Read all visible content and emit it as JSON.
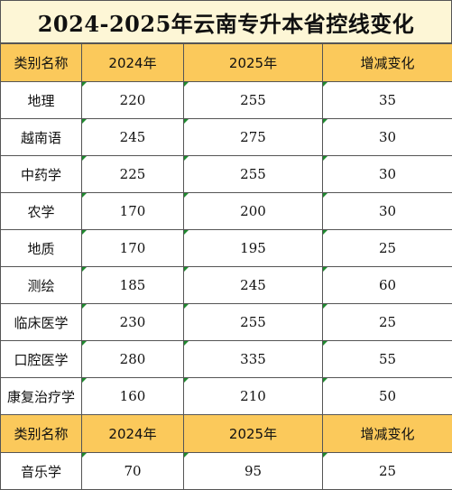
{
  "title": "2024-2025年云南专升本省控线变化",
  "headers": [
    "类别名称",
    "2024年",
    "2025年",
    "增减变化"
  ],
  "rows": [
    {
      "name": "地理",
      "y2024": "220",
      "y2025": "255",
      "change": "35"
    },
    {
      "name": "越南语",
      "y2024": "245",
      "y2025": "275",
      "change": "30"
    },
    {
      "name": "中药学",
      "y2024": "225",
      "y2025": "255",
      "change": "30"
    },
    {
      "name": "农学",
      "y2024": "170",
      "y2025": "200",
      "change": "30"
    },
    {
      "name": "地质",
      "y2024": "170",
      "y2025": "195",
      "change": "25"
    },
    {
      "name": "测绘",
      "y2024": "185",
      "y2025": "245",
      "change": "60"
    },
    {
      "name": "临床医学",
      "y2024": "230",
      "y2025": "255",
      "change": "25"
    },
    {
      "name": "口腔医学",
      "y2024": "280",
      "y2025": "335",
      "change": "55"
    },
    {
      "name": "康复治疗学",
      "y2024": "160",
      "y2025": "210",
      "change": "50"
    }
  ],
  "headers2": [
    "类别名称",
    "2024年",
    "2025年",
    "增减变化"
  ],
  "rows2": [
    {
      "name": "音乐学",
      "y2024": "70",
      "y2025": "95",
      "change": "25"
    }
  ],
  "colors": {
    "title_bg": "#fdf6d6",
    "header_bg": "#fbc95b",
    "cell_mark": "#1f8a2f",
    "border": "#555555"
  }
}
